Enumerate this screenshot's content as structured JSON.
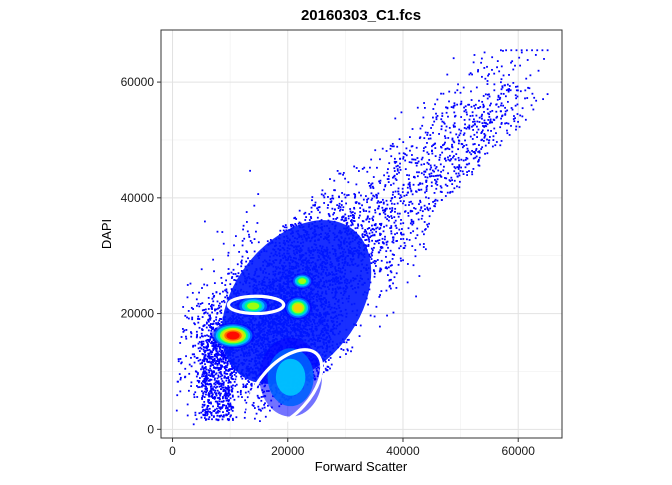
{
  "chart_data": {
    "type": "scatter",
    "title": "20160303_C1.fcs",
    "xlabel": "Forward Scatter",
    "ylabel": "DAPI",
    "xlim": [
      -2000,
      67600
    ],
    "ylim": [
      -1500,
      69000
    ],
    "x_ticks": [
      0,
      20000,
      40000,
      60000
    ],
    "y_ticks": [
      0,
      20000,
      40000,
      60000
    ],
    "x_tick_labels": [
      "0",
      "20000",
      "40000",
      "60000"
    ],
    "y_tick_labels": [
      "0",
      "20000",
      "40000",
      "60000"
    ],
    "grid": true,
    "point_color": "#0000ff",
    "density_colors": [
      "#0000ff",
      "#0060ff",
      "#00c8ff",
      "#00ff80",
      "#b0ff00",
      "#ffcc00",
      "#ff6000",
      "#ff0000"
    ],
    "gate_color": "#ffffff",
    "density_peaks": [
      {
        "x": 10500,
        "y": 16200,
        "sx": 2200,
        "sy": 1300,
        "peak": 1.0
      },
      {
        "x": 14000,
        "y": 21300,
        "sx": 1700,
        "sy": 1000,
        "peak": 0.62
      },
      {
        "x": 21800,
        "y": 21000,
        "sx": 1400,
        "sy": 1200,
        "peak": 0.75
      },
      {
        "x": 22500,
        "y": 25600,
        "sx": 1100,
        "sy": 800,
        "peak": 0.5
      },
      {
        "x": 20500,
        "y": 9000,
        "sx": 3200,
        "sy": 4000,
        "peak": 0.22
      }
    ],
    "gates": [
      {
        "name": "gate-ellipse-upper",
        "cx": 14500,
        "cy": 21500,
        "rx": 4800,
        "ry": 1500,
        "angle": 0
      },
      {
        "name": "gate-ellipse-lower",
        "cx": 19500,
        "cy": 7000,
        "rx": 8200,
        "ry": 4400,
        "angle": 48
      }
    ]
  }
}
